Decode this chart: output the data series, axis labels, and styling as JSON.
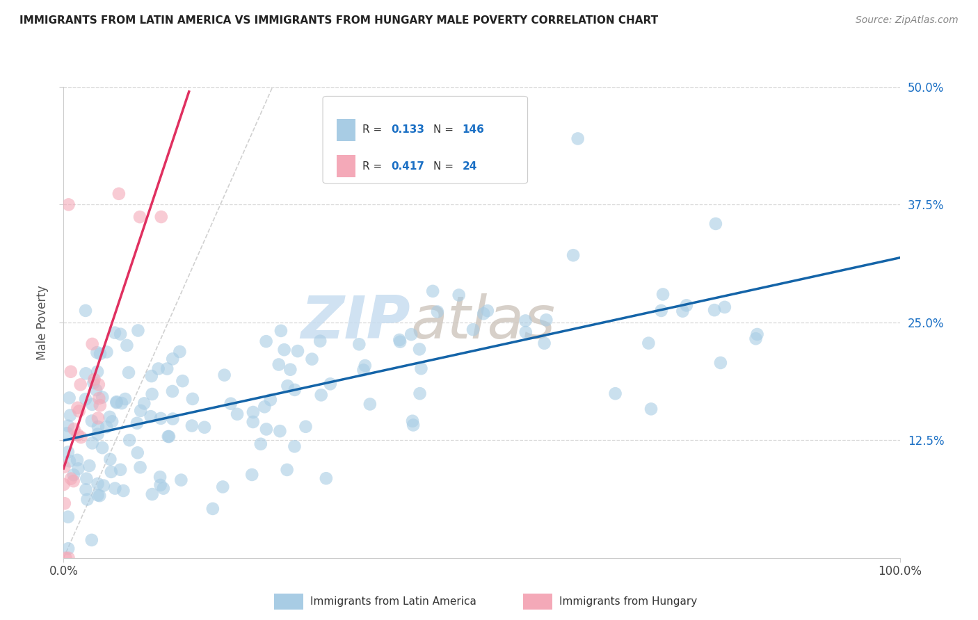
{
  "title": "IMMIGRANTS FROM LATIN AMERICA VS IMMIGRANTS FROM HUNGARY MALE POVERTY CORRELATION CHART",
  "source": "Source: ZipAtlas.com",
  "ylabel": "Male Poverty",
  "legend_label_1": "Immigrants from Latin America",
  "legend_label_2": "Immigrants from Hungary",
  "r1": 0.133,
  "n1": 146,
  "r2": 0.417,
  "n2": 24,
  "color1": "#a8cce4",
  "color2": "#f4a9b8",
  "line_color1": "#1464a8",
  "line_color2": "#e03060",
  "diag_color": "#cccccc",
  "xlim": [
    0.0,
    1.0
  ],
  "ylim": [
    0.0,
    0.5
  ],
  "ytick_labels_right": [
    "12.5%",
    "25.0%",
    "37.5%",
    "50.0%"
  ],
  "ytick_vals_right": [
    0.125,
    0.25,
    0.375,
    0.5
  ],
  "xtick_labels": [
    "0.0%",
    "100.0%"
  ],
  "xtick_vals": [
    0.0,
    1.0
  ],
  "watermark_zip": "ZIP",
  "watermark_atlas": "atlas",
  "dot_size": 180,
  "dot_alpha": 0.6,
  "grid_color": "#d8d8d8",
  "background_color": "#ffffff",
  "legend_r1_val": "0.133",
  "legend_n1_val": "146",
  "legend_r2_val": "0.417",
  "legend_n2_val": "24",
  "legend_color_text": "#1a6fc4",
  "legend_label_color": "#333333"
}
